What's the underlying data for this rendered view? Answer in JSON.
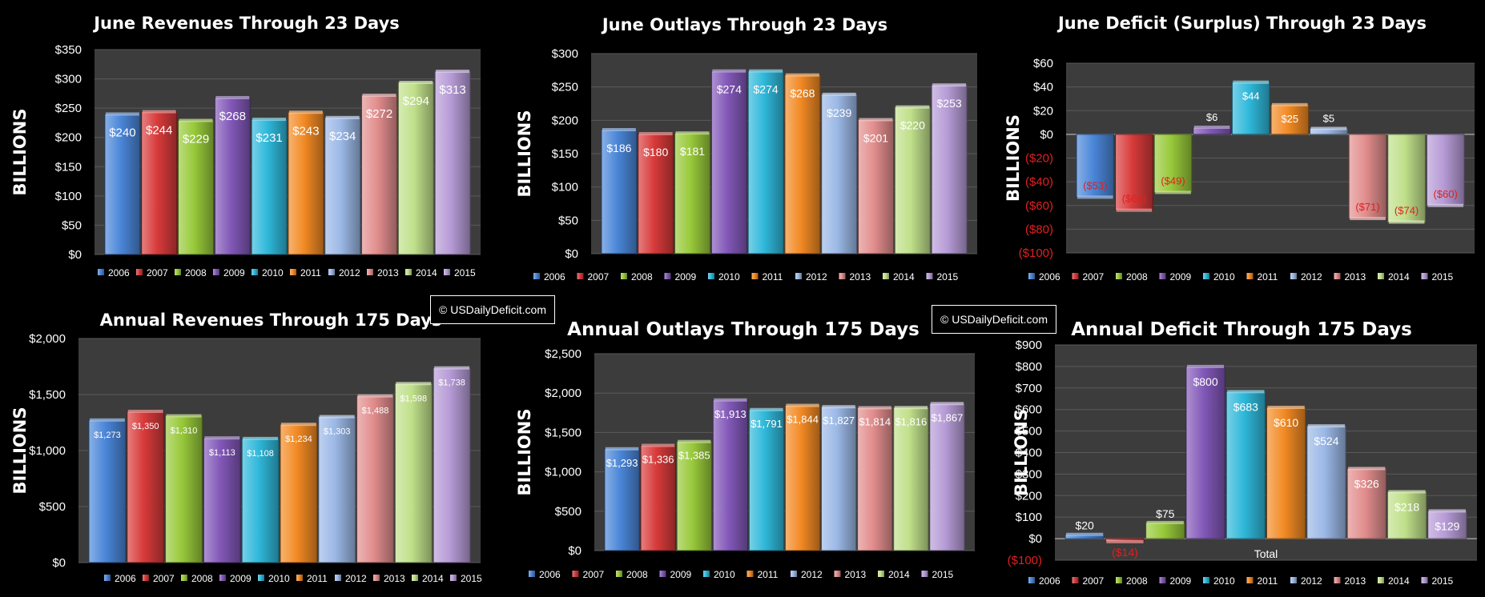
{
  "palette": {
    "series_colors": [
      "#4a86d8",
      "#d83a3a",
      "#98c93a",
      "#8258b8",
      "#2fb8da",
      "#f28a24",
      "#9bb8e6",
      "#e28d8d",
      "#c0e08a",
      "#b69bd6"
    ],
    "plot_background": "#3c3c3c",
    "gridline": "#5a5a5a",
    "negative_label": "#e02020"
  },
  "watermarks": [
    {
      "text": "© USDailyDeficit.com"
    },
    {
      "text": "© USDailyDeficit.com"
    }
  ],
  "chart_data": [
    {
      "type": "bar",
      "title": "June Revenues Through 23 Days",
      "ylabel": "BILLIONS",
      "ylim": [
        0,
        350
      ],
      "yticks": [
        0,
        50,
        100,
        150,
        200,
        250,
        300,
        350
      ],
      "ytick_labels": [
        "$0",
        "$50",
        "$100",
        "$150",
        "$200",
        "$250",
        "$300",
        "$350"
      ],
      "categories": [
        "2006",
        "2007",
        "2008",
        "2009",
        "2010",
        "2011",
        "2012",
        "2013",
        "2014",
        "2015"
      ],
      "values": [
        240,
        244,
        229,
        268,
        231,
        243,
        234,
        272,
        294,
        313
      ],
      "data_labels": [
        "$240",
        "$244",
        "$229",
        "$268",
        "$231",
        "$243",
        "$234",
        "$272",
        "$294",
        "$313"
      ],
      "palette": "light",
      "legend": "bottom"
    },
    {
      "type": "bar",
      "title": "June Outlays Through 23 Days",
      "ylabel": "BILLIONS",
      "ylim": [
        0,
        300
      ],
      "yticks": [
        0,
        50,
        100,
        150,
        200,
        250,
        300
      ],
      "ytick_labels": [
        "$0",
        "$50",
        "$100",
        "$150",
        "$200",
        "$250",
        "$300"
      ],
      "categories": [
        "2006",
        "2007",
        "2008",
        "2009",
        "2010",
        "2011",
        "2012",
        "2013",
        "2014",
        "2015"
      ],
      "values": [
        186,
        180,
        181,
        274,
        274,
        268,
        239,
        201,
        220,
        253
      ],
      "data_labels": [
        "$186",
        "$180",
        "$181",
        "$274",
        "$274",
        "$268",
        "$239",
        "$201",
        "$220",
        "$253"
      ],
      "palette": "dark",
      "legend": "bottom"
    },
    {
      "type": "bar",
      "title": "June Deficit (Surplus) Through 23 Days",
      "ylabel": "BILLIONS",
      "ylim": [
        -100,
        60
      ],
      "yticks": [
        -100,
        -80,
        -60,
        -40,
        -20,
        0,
        20,
        40,
        60
      ],
      "ytick_labels": [
        "($100)",
        "($80)",
        "($60)",
        "($40)",
        "($20)",
        "$0",
        "$20",
        "$40",
        "$60"
      ],
      "categories": [
        "2006",
        "2007",
        "2008",
        "2009",
        "2010",
        "2011",
        "2012",
        "2013",
        "2014",
        "2015"
      ],
      "values": [
        -53,
        -64,
        -49,
        6,
        44,
        25,
        5,
        -71,
        -74,
        -60
      ],
      "data_labels": [
        "($53)",
        "($64)",
        "($49)",
        "$6",
        "$44",
        "$25",
        "$5",
        "($71)",
        "($74)",
        "($60)"
      ],
      "palette": "dark",
      "legend": "bottom"
    },
    {
      "type": "bar",
      "title": "Annual Revenues Through 175 Days",
      "ylabel": "BILLIONS",
      "ylim": [
        0,
        2000
      ],
      "yticks": [
        0,
        500,
        1000,
        1500,
        2000
      ],
      "ytick_labels": [
        "$0",
        "$500",
        "$1,000",
        "$1,500",
        "$2,000"
      ],
      "categories": [
        "2006",
        "2007",
        "2008",
        "2009",
        "2010",
        "2011",
        "2012",
        "2013",
        "2014",
        "2015"
      ],
      "values": [
        1273,
        1350,
        1310,
        1113,
        1108,
        1234,
        1303,
        1488,
        1598,
        1738
      ],
      "data_labels": [
        "$1,273",
        "$1,350",
        "$1,310",
        "$1,113",
        "$1,108",
        "$1,234",
        "$1,303",
        "$1,488",
        "$1,598",
        "$1,738"
      ],
      "palette": "light",
      "legend": "bottom"
    },
    {
      "type": "bar",
      "title": "Annual Outlays Through 175 Days",
      "ylabel": "BILLIONS",
      "ylim": [
        0,
        2500
      ],
      "yticks": [
        0,
        500,
        1000,
        1500,
        2000,
        2500
      ],
      "ytick_labels": [
        "$0",
        "$500",
        "$1,000",
        "$1,500",
        "$2,000",
        "$2,500"
      ],
      "categories": [
        "2006",
        "2007",
        "2008",
        "2009",
        "2010",
        "2011",
        "2012",
        "2013",
        "2014",
        "2015"
      ],
      "values": [
        1293,
        1336,
        1385,
        1913,
        1791,
        1844,
        1827,
        1814,
        1816,
        1867
      ],
      "data_labels": [
        "$1,293",
        "$1,336",
        "$1,385",
        "$1,913",
        "$1,791",
        "$1,844",
        "$1,827",
        "$1,814",
        "$1,816",
        "$1,867"
      ],
      "palette": "dark",
      "legend": "bottom"
    },
    {
      "type": "bar",
      "title": "Annual Deficit Through 175 Days",
      "ylabel": "BILLIONS",
      "ylim": [
        -100,
        900
      ],
      "yticks": [
        -100,
        0,
        100,
        200,
        300,
        400,
        500,
        600,
        700,
        800,
        900
      ],
      "ytick_labels": [
        "($100)",
        "$0",
        "$100",
        "$200",
        "$300",
        "$400",
        "$500",
        "$600",
        "$700",
        "$800",
        "$900"
      ],
      "xlabel": "Total",
      "categories": [
        "2006",
        "2007",
        "2008",
        "2009",
        "2010",
        "2011",
        "2012",
        "2013",
        "2014",
        "2015"
      ],
      "values": [
        20,
        -14,
        75,
        800,
        683,
        610,
        524,
        326,
        218,
        129
      ],
      "data_labels": [
        "$20",
        "($14)",
        "$75",
        "$800",
        "$683",
        "$610",
        "$524",
        "$326",
        "$218",
        "$129"
      ],
      "palette": "dark",
      "legend": "bottom"
    }
  ]
}
